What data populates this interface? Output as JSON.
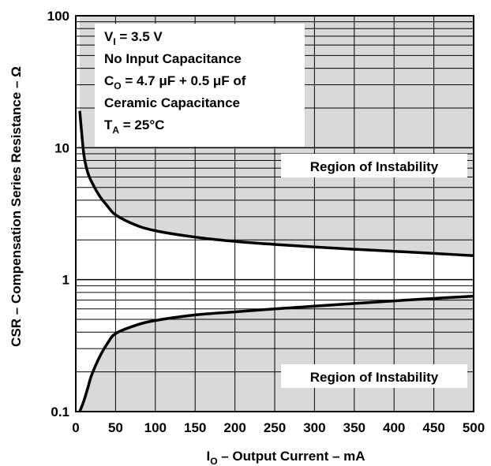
{
  "chart_data": {
    "type": "line",
    "x_label": {
      "main": "I",
      "sub": "O",
      "rest": " – Output Current – mA"
    },
    "y_label": "CSR – Compensation Series Resistance – Ω",
    "x_ticks": [
      "0",
      "50",
      "100",
      "150",
      "200",
      "250",
      "300",
      "350",
      "400",
      "450",
      "500"
    ],
    "y_ticks": [
      "0.1",
      "1",
      "10",
      "100"
    ],
    "xlim": [
      0,
      500
    ],
    "ylim": [
      0.1,
      100
    ],
    "y_scale": "log",
    "grid": true,
    "series": [
      {
        "x": [
          5,
          10,
          15,
          20,
          30,
          40,
          50,
          75,
          100,
          150,
          200,
          250,
          300,
          350,
          400,
          450,
          500
        ],
        "y": [
          19,
          9,
          6.5,
          5.5,
          4.3,
          3.6,
          3.1,
          2.6,
          2.35,
          2.1,
          1.95,
          1.85,
          1.77,
          1.7,
          1.64,
          1.58,
          1.52
        ]
      },
      {
        "x": [
          5,
          10,
          15,
          20,
          30,
          40,
          50,
          75,
          100,
          150,
          200,
          250,
          300,
          350,
          400,
          450,
          500
        ],
        "y": [
          0.1,
          0.12,
          0.15,
          0.19,
          0.26,
          0.33,
          0.39,
          0.45,
          0.49,
          0.54,
          0.57,
          0.6,
          0.63,
          0.66,
          0.69,
          0.72,
          0.75
        ]
      }
    ],
    "regions": [
      "Region of Instability",
      "Region of Instability"
    ],
    "conditions": [
      {
        "main": "V",
        "sub": "I",
        "rest": " = 3.5 V"
      },
      {
        "main": "No Input Capacitance",
        "sub": "",
        "rest": ""
      },
      {
        "main": "C",
        "sub": "O",
        "rest": " = 4.7 μF + 0.5 μF of"
      },
      {
        "main": "Ceramic Capacitance",
        "sub": "",
        "rest": ""
      },
      {
        "main": "T",
        "sub": "A",
        "rest": " = 25°C"
      }
    ]
  }
}
